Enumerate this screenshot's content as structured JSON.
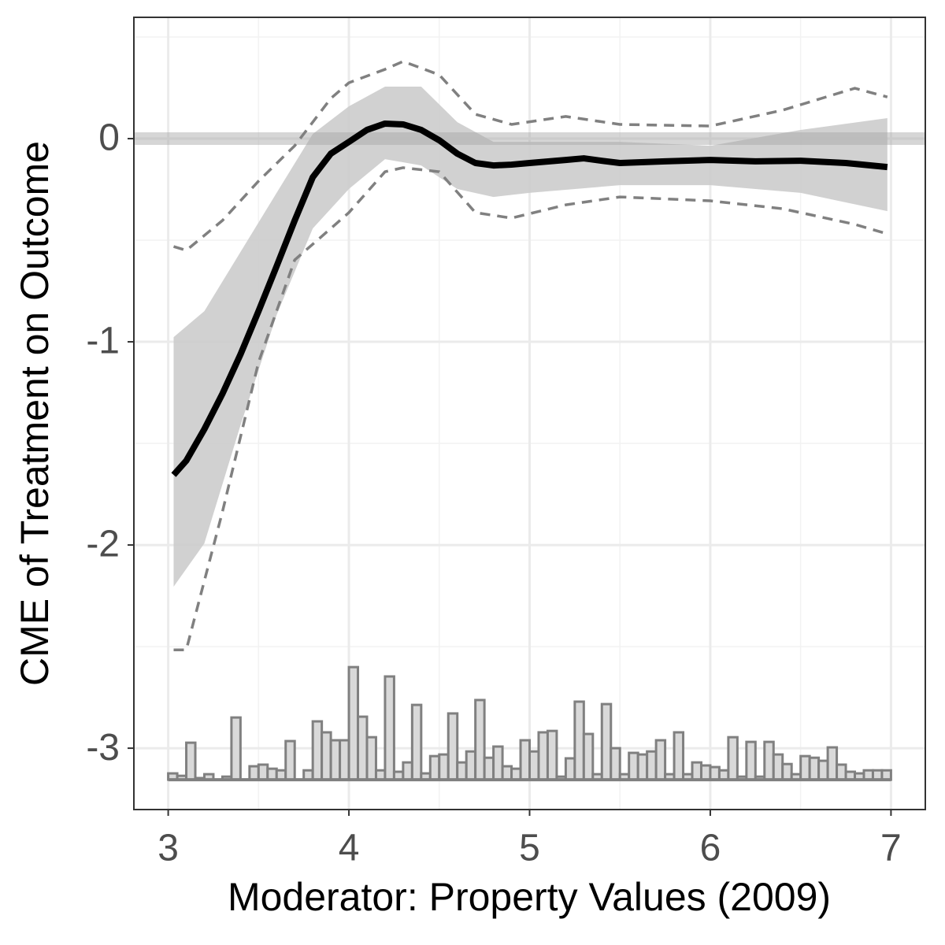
{
  "chart_data": {
    "type": "line",
    "xlabel": "Moderator: Property Values (2009)",
    "ylabel": "CME of Treatment on Outcome",
    "xlim": [
      2.81,
      7.19
    ],
    "ylim": [
      -3.302,
      0.597
    ],
    "xticks": [
      3,
      4,
      5,
      6,
      7
    ],
    "yticks": [
      -3,
      -2,
      -1,
      0
    ],
    "grid": true,
    "hline": 0,
    "band": {
      "color": "#cccccc",
      "x": [
        3.03,
        3.2,
        3.4,
        3.6,
        3.8,
        4.0,
        4.2,
        4.4,
        4.6,
        4.8,
        5.0,
        5.5,
        6.0,
        6.5,
        6.98
      ],
      "upper": [
        -0.977,
        -0.849,
        -0.558,
        -0.267,
        0.023,
        0.159,
        0.256,
        0.256,
        0.081,
        -0.016,
        -0.016,
        -0.016,
        -0.035,
        0.043,
        0.101
      ],
      "lower": [
        -2.205,
        -1.992,
        -1.411,
        -0.868,
        -0.442,
        -0.248,
        -0.101,
        -0.132,
        -0.248,
        -0.287,
        -0.267,
        -0.229,
        -0.229,
        -0.267,
        -0.357
      ]
    },
    "series": [
      {
        "color": "#000000",
        "dash": false,
        "x": [
          3.03,
          3.1,
          3.2,
          3.3,
          3.4,
          3.5,
          3.6,
          3.7,
          3.8,
          3.9,
          4.0,
          4.1,
          4.2,
          4.3,
          4.4,
          4.5,
          4.6,
          4.7,
          4.8,
          4.9,
          5.0,
          5.2,
          5.3,
          5.4,
          5.5,
          5.75,
          6.0,
          6.25,
          6.5,
          6.75,
          6.98
        ],
        "values": [
          -1.655,
          -1.585,
          -1.43,
          -1.256,
          -1.062,
          -0.849,
          -0.628,
          -0.403,
          -0.19,
          -0.074,
          -0.016,
          0.043,
          0.074,
          0.07,
          0.043,
          -0.008,
          -0.074,
          -0.12,
          -0.132,
          -0.128,
          -0.12,
          -0.105,
          -0.097,
          -0.109,
          -0.12,
          -0.112,
          -0.105,
          -0.112,
          -0.109,
          -0.12,
          -0.14
        ]
      },
      {
        "color": "#808080",
        "dash": true,
        "x": [
          3.03,
          3.1,
          3.3,
          3.5,
          3.7,
          3.9,
          4.0,
          4.2,
          4.3,
          4.5,
          4.7,
          4.9,
          5.2,
          5.5,
          6.0,
          6.4,
          6.8,
          6.98
        ],
        "values": [
          -0.531,
          -0.55,
          -0.403,
          -0.209,
          -0.035,
          0.198,
          0.275,
          0.341,
          0.38,
          0.314,
          0.12,
          0.07,
          0.109,
          0.07,
          0.062,
          0.14,
          0.248,
          0.205
        ]
      },
      {
        "color": "#808080",
        "dash": true,
        "x": [
          3.03,
          3.1,
          3.3,
          3.5,
          3.7,
          3.9,
          4.0,
          4.2,
          4.3,
          4.5,
          4.7,
          4.9,
          5.2,
          5.5,
          6.0,
          6.4,
          6.8,
          6.98
        ],
        "values": [
          -2.516,
          -2.516,
          -1.837,
          -1.1,
          -0.597,
          -0.442,
          -0.364,
          -0.163,
          -0.143,
          -0.163,
          -0.364,
          -0.391,
          -0.326,
          -0.287,
          -0.306,
          -0.345,
          -0.422,
          -0.469
        ]
      }
    ],
    "histogram": {
      "color": "#d9d9d9",
      "edge": "#808080",
      "base": -3.155,
      "bins": [
        3.0,
        3.05,
        3.1,
        3.15,
        3.2,
        3.25,
        3.3,
        3.35,
        3.4,
        3.45,
        3.5,
        3.55,
        3.6,
        3.65,
        3.7,
        3.75,
        3.8,
        3.85,
        3.9,
        3.95,
        4.0,
        4.05,
        4.1,
        4.15,
        4.2,
        4.25,
        4.3,
        4.35,
        4.4,
        4.45,
        4.5,
        4.55,
        4.6,
        4.65,
        4.7,
        4.75,
        4.8,
        4.85,
        4.9,
        4.95,
        5.0,
        5.05,
        5.1,
        5.15,
        5.2,
        5.25,
        5.3,
        5.35,
        5.4,
        5.45,
        5.5,
        5.55,
        5.6,
        5.65,
        5.7,
        5.75,
        5.8,
        5.85,
        5.9,
        5.95,
        6.0,
        6.05,
        6.1,
        6.15,
        6.2,
        6.25,
        6.3,
        6.35,
        6.4,
        6.45,
        6.5,
        6.55,
        6.6,
        6.65,
        6.7,
        6.75,
        6.8,
        6.85,
        6.9,
        6.95,
        7.0
      ],
      "values": [
        -3.124,
        -3.136,
        -2.973,
        -3.147,
        -3.128,
        -3.155,
        -3.14,
        -2.849,
        -3.155,
        -3.089,
        -3.081,
        -3.101,
        -3.109,
        -2.965,
        -3.155,
        -3.109,
        -2.868,
        -2.922,
        -2.961,
        -2.961,
        -2.601,
        -2.845,
        -2.946,
        -3.109,
        -2.647,
        -3.116,
        -3.07,
        -2.787,
        -3.124,
        -3.039,
        -3.031,
        -2.829,
        -3.07,
        -3.016,
        -2.763,
        -3.047,
        -2.992,
        -3.089,
        -3.101,
        -2.961,
        -3.016,
        -2.922,
        -2.915,
        -3.14,
        -3.05,
        -2.771,
        -2.93,
        -3.128,
        -2.783,
        -3.0,
        -3.128,
        -3.023,
        -3.031,
        -3.016,
        -2.961,
        -3.128,
        -2.922,
        -3.128,
        -3.07,
        -3.085,
        -3.093,
        -3.109,
        -2.946,
        -3.14,
        -2.969,
        -3.14,
        -2.969,
        -3.031,
        -3.078,
        -3.128,
        -3.039,
        -3.047,
        -3.062,
        -2.996,
        -3.081,
        -3.116,
        -3.124,
        -3.109,
        -3.109,
        -3.109
      ]
    }
  }
}
